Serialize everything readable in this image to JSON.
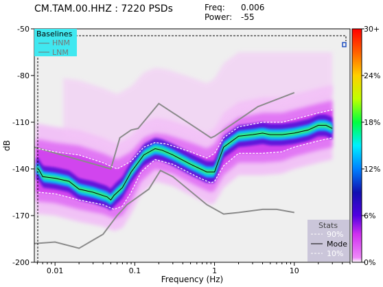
{
  "header": {
    "title": "CM.TAM.00.HHZ : 7220 PSDs",
    "freq_label": "Freq:",
    "freq_value": "0.006",
    "power_label": "Power:",
    "power_value": "-55"
  },
  "chart_data": {
    "type": "heatmap",
    "xlabel": "Frequency (Hz)",
    "ylabel": "dB",
    "xscale": "log",
    "xlim": [
      0.0055,
      50
    ],
    "ylim": [
      -200,
      -50
    ],
    "x_ticks": [
      0.01,
      0.1,
      1,
      10
    ],
    "x_tick_labels": [
      "0.01",
      "0.1",
      "1",
      "10"
    ],
    "y_ticks": [
      -200,
      -170,
      -140,
      -110,
      -80,
      -50
    ],
    "y_tick_labels": [
      "-200",
      "-170",
      "-140",
      "-110",
      "-80",
      "-50"
    ],
    "colorbar": {
      "ticks": [
        0,
        6,
        12,
        18,
        24,
        30
      ],
      "tick_labels": [
        "0%",
        "6%",
        "12%",
        "18%",
        "24%",
        "30+"
      ],
      "colors": [
        "#ffffff",
        "#e040fb",
        "#2200cc",
        "#00e0ff",
        "#00ff00",
        "#ffff00",
        "#ff8800",
        "#ff0000"
      ]
    },
    "baselines_legend": {
      "title": "Baselines",
      "entries": [
        "HNM",
        "LNM"
      ]
    },
    "stats_legend": {
      "title": "Stats",
      "entries": [
        "90%",
        "Mode",
        "10%"
      ]
    },
    "hnm": {
      "x": [
        0.0055,
        0.05,
        0.065,
        0.09,
        0.11,
        0.2,
        0.6,
        0.9,
        1.0,
        3.5,
        10
      ],
      "y": [
        -126,
        -140,
        -120,
        -115,
        -114,
        -98,
        -114,
        -120,
        -119,
        -100,
        -91
      ]
    },
    "lnm": {
      "x": [
        0.0055,
        0.01,
        0.02,
        0.04,
        0.06,
        0.08,
        0.15,
        0.21,
        0.3,
        0.8,
        1.3,
        2,
        4,
        6,
        10
      ],
      "y": [
        -188,
        -187,
        -191,
        -182,
        -170,
        -163,
        -153,
        -141,
        -145,
        -163,
        -169,
        -168,
        -166,
        -166,
        -168
      ]
    },
    "mode": {
      "x": [
        0.0062,
        0.007,
        0.01,
        0.015,
        0.02,
        0.03,
        0.045,
        0.05,
        0.055,
        0.07,
        0.09,
        0.13,
        0.18,
        0.22,
        0.3,
        0.5,
        0.8,
        1.0,
        1.1,
        1.3,
        2,
        3,
        4,
        5,
        7,
        10,
        15,
        20,
        25,
        30
      ],
      "y": [
        -140,
        -145,
        -146,
        -148,
        -153,
        -155,
        -158,
        -160,
        -157,
        -152,
        -142,
        -131,
        -127,
        -128,
        -131,
        -137,
        -142,
        -142,
        -136,
        -126,
        -119,
        -118,
        -117,
        -118,
        -118,
        -117,
        -115,
        -112,
        -112,
        -114
      ]
    },
    "p90": {
      "x": [
        0.0062,
        0.01,
        0.02,
        0.04,
        0.06,
        0.09,
        0.13,
        0.18,
        0.25,
        0.5,
        0.8,
        1.0,
        1.3,
        2,
        4,
        7,
        10,
        20,
        30
      ],
      "y": [
        -127,
        -129,
        -131,
        -136,
        -140,
        -135,
        -126,
        -123,
        -124,
        -129,
        -133,
        -130,
        -120,
        -113,
        -110,
        -110,
        -108,
        -104,
        -102
      ]
    },
    "p10": {
      "x": [
        0.0062,
        0.01,
        0.02,
        0.04,
        0.055,
        0.07,
        0.09,
        0.12,
        0.18,
        0.3,
        0.6,
        0.9,
        1.0,
        1.3,
        2,
        4,
        7,
        10,
        20,
        30
      ],
      "y": [
        -155,
        -156,
        -160,
        -163,
        -166,
        -164,
        -155,
        -142,
        -134,
        -137,
        -145,
        -149,
        -148,
        -138,
        -130,
        -130,
        -129,
        -126,
        -122,
        -120
      ]
    }
  }
}
